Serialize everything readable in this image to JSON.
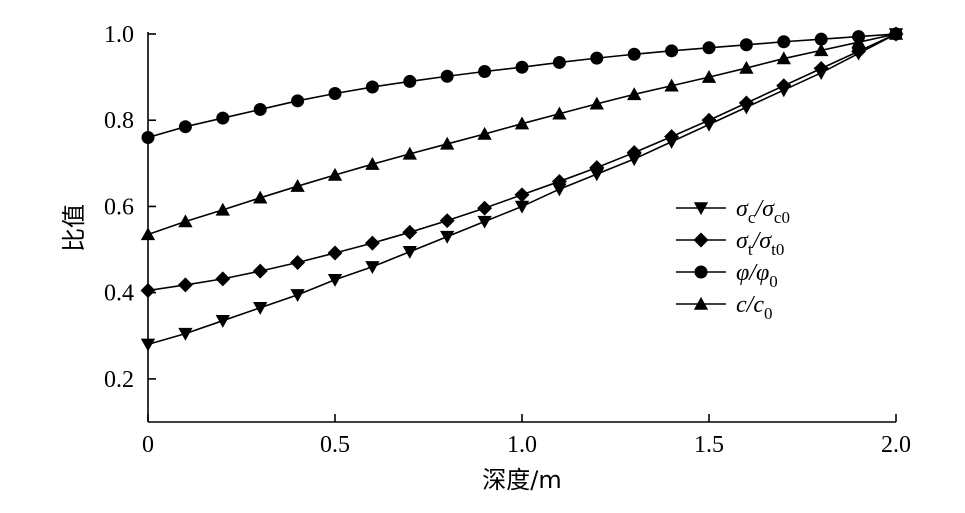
{
  "chart_data": {
    "type": "line",
    "xlabel": "深度/m",
    "ylabel": "比值",
    "xlim": [
      0,
      2.0
    ],
    "ylim": [
      0.1,
      1.0
    ],
    "x_ticks": [
      0,
      0.5,
      1.0,
      1.5,
      2.0
    ],
    "x_tick_labels": [
      "0",
      "0.5",
      "1.0",
      "1.5",
      "2.0"
    ],
    "y_ticks": [
      0.2,
      0.4,
      0.6,
      0.8,
      1.0
    ],
    "y_tick_labels": [
      "0.2",
      "0.4",
      "0.6",
      "0.8",
      "1.0"
    ],
    "grid": false,
    "legend_position": "right",
    "x": [
      0,
      0.1,
      0.2,
      0.3,
      0.4,
      0.5,
      0.6,
      0.7,
      0.8,
      0.9,
      1.0,
      1.1,
      1.2,
      1.3,
      1.4,
      1.5,
      1.6,
      1.7,
      1.8,
      1.9,
      2.0
    ],
    "series": [
      {
        "marker": "triangle-down",
        "legend": {
          "main": "σ",
          "sub": "c",
          "sep": "/",
          "main2": "σ",
          "sub2": "c0"
        },
        "values": [
          0.28,
          0.305,
          0.335,
          0.365,
          0.395,
          0.43,
          0.46,
          0.495,
          0.53,
          0.565,
          0.6,
          0.64,
          0.675,
          0.71,
          0.75,
          0.79,
          0.83,
          0.87,
          0.91,
          0.955,
          1.0
        ]
      },
      {
        "marker": "diamond",
        "legend": {
          "main": "σ",
          "sub": "t",
          "sep": "/",
          "main2": "σ",
          "sub2": "t0"
        },
        "values": [
          0.405,
          0.418,
          0.432,
          0.45,
          0.47,
          0.492,
          0.515,
          0.54,
          0.567,
          0.596,
          0.627,
          0.658,
          0.69,
          0.725,
          0.762,
          0.8,
          0.84,
          0.88,
          0.92,
          0.96,
          1.0
        ]
      },
      {
        "marker": "circle",
        "legend": {
          "main": "φ",
          "sub": "",
          "sep": "/",
          "main2": "φ",
          "sub2": "0"
        },
        "values": [
          0.76,
          0.785,
          0.805,
          0.825,
          0.845,
          0.862,
          0.877,
          0.89,
          0.902,
          0.913,
          0.923,
          0.934,
          0.944,
          0.953,
          0.961,
          0.968,
          0.975,
          0.982,
          0.988,
          0.994,
          1.0
        ]
      },
      {
        "marker": "triangle-up",
        "legend": {
          "main": "c",
          "sub": "",
          "sep": "/",
          "main2": "c",
          "sub2": "0"
        },
        "values": [
          0.535,
          0.565,
          0.592,
          0.62,
          0.647,
          0.673,
          0.698,
          0.722,
          0.745,
          0.768,
          0.792,
          0.815,
          0.838,
          0.86,
          0.88,
          0.9,
          0.921,
          0.943,
          0.962,
          0.981,
          1.0
        ]
      }
    ]
  }
}
